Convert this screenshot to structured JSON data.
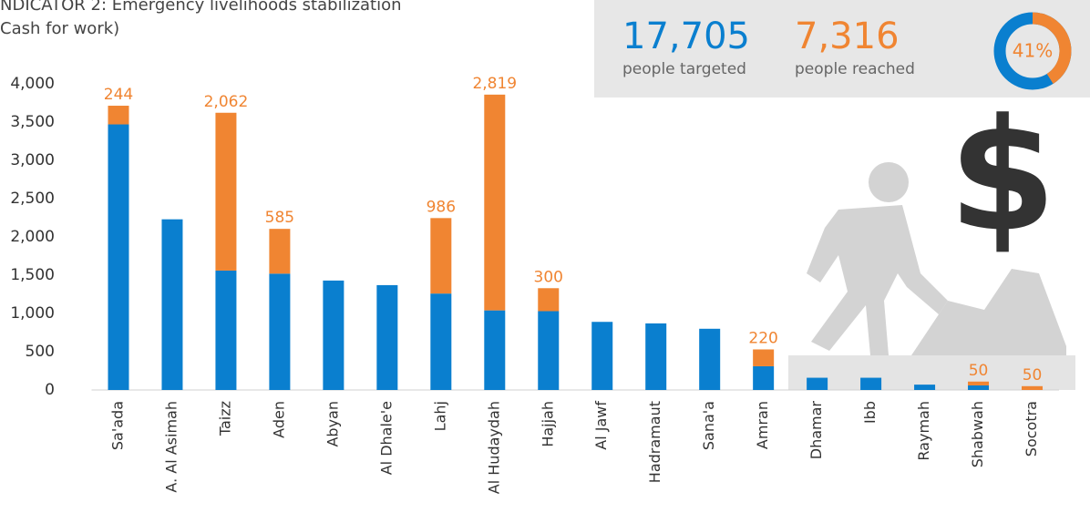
{
  "chart_data": {
    "type": "stacked-bar",
    "title_lines": [
      "NDICATOR 2: Emergency livelihoods stabilization",
      "Cash for work)"
    ],
    "categories": [
      "Sa'ada",
      "A. Al Asimah",
      "Taizz",
      "Aden",
      "Abyan",
      "Al Dhale'e",
      "Lahj",
      "Al Hudaydah",
      "Hajjah",
      "Al Jawf",
      "Hadramaut",
      "Sana'a",
      "Amran",
      "Dhamar",
      "Ibb",
      "Raymah",
      "Shabwah",
      "Socotra"
    ],
    "series": [
      {
        "color": "#0a7fcf",
        "values": [
          3470,
          2230,
          1560,
          1520,
          1430,
          1370,
          1260,
          1040,
          1030,
          890,
          870,
          800,
          310,
          160,
          160,
          70,
          60,
          0
        ]
      },
      {
        "color": "#f08532",
        "values": [
          244,
          null,
          2062,
          585,
          null,
          null,
          986,
          2819,
          300,
          null,
          null,
          null,
          220,
          null,
          null,
          null,
          50,
          50
        ],
        "value_labels": [
          "244",
          null,
          "2,062",
          "585",
          null,
          null,
          "986",
          "2,819",
          "300",
          null,
          null,
          null,
          "220",
          null,
          null,
          null,
          "50",
          "50"
        ]
      }
    ],
    "ylim": [
      0,
      4000
    ],
    "yticks": [
      0,
      500,
      {
        "value": 1000,
        "label": "1,000"
      },
      {
        "value": 1500,
        "label": "1,500"
      },
      {
        "value": 2000,
        "label": "2,000"
      },
      {
        "value": 2500,
        "label": "2,500"
      },
      {
        "value": 3000,
        "label": "3,000"
      },
      {
        "value": 3500,
        "label": "3,500"
      },
      {
        "value": 4000,
        "label": "4,000"
      }
    ]
  },
  "summary": {
    "targeted": {
      "number": "17,705",
      "caption": "people targeted"
    },
    "reached": {
      "number": "7,316",
      "caption": "people reached"
    },
    "donut": {
      "value": 41,
      "label": "41%"
    }
  }
}
